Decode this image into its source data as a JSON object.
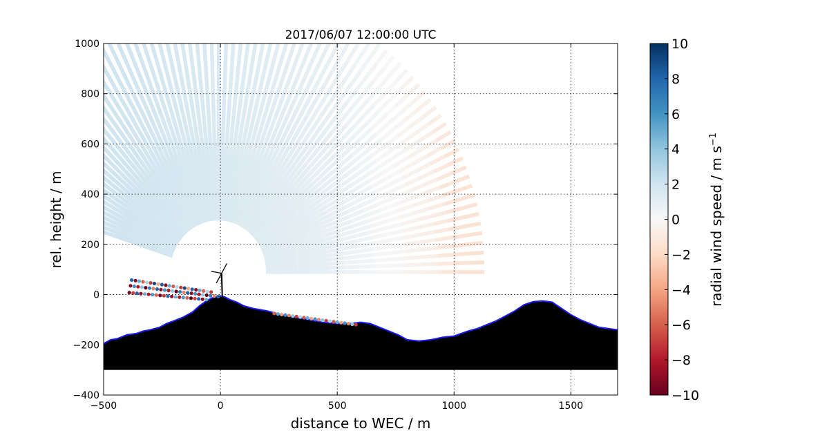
{
  "chart_data": {
    "type": "heatmap",
    "title": "2017/06/07 12:00:00 UTC",
    "xlabel": "distance to WEC / m",
    "ylabel": "rel. height / m",
    "xlim": [
      -500,
      1700
    ],
    "ylim": [
      -400,
      1000
    ],
    "xticks": [
      -500,
      0,
      500,
      1000,
      1500
    ],
    "yticks": [
      -400,
      -200,
      0,
      200,
      400,
      600,
      800,
      1000
    ],
    "xtick_labels": [
      "−500",
      "0",
      "500",
      "1000",
      "1500"
    ],
    "ytick_labels": [
      "−400",
      "−200",
      "0",
      "200",
      "400",
      "600",
      "800",
      "1000"
    ],
    "grid": true,
    "colorbar": {
      "label": "radial wind speed / m s",
      "label_superscript": "−1",
      "range": [
        -10,
        10
      ],
      "ticks": [
        10,
        8,
        6,
        4,
        2,
        0,
        -2,
        -4,
        -6,
        -8,
        -10
      ],
      "tick_labels": [
        "10",
        "8",
        "6",
        "4",
        "2",
        "0",
        "−2",
        "−4",
        "−6",
        "−8",
        "−10"
      ],
      "colormap": "RdBu",
      "colors": [
        "#67001f",
        "#b2182b",
        "#d6604d",
        "#f4a582",
        "#fddbc7",
        "#f7f7f7",
        "#d1e5f0",
        "#92c5de",
        "#4393c3",
        "#2166ac",
        "#053061"
      ]
    },
    "scan": {
      "origin": [
        -10,
        90
      ],
      "beam_length_m": 1140,
      "azimuth_start_deg": 0,
      "azimuth_end_deg": 162,
      "beam_count": 84,
      "velocity_west_to_east": [
        {
          "x": -400,
          "v": 2.0
        },
        {
          "x": 0,
          "v": 1.5
        },
        {
          "x": 500,
          "v": 0.8
        },
        {
          "x": 900,
          "v": -0.6
        },
        {
          "x": 1000,
          "v": -1.4
        },
        {
          "x": 1700,
          "v": -1.8
        }
      ]
    },
    "terrain": {
      "x": [
        -500,
        -470,
        -440,
        -400,
        -360,
        -330,
        -300,
        -260,
        -230,
        -200,
        -160,
        -120,
        -90,
        -60,
        -40,
        -20,
        0,
        20,
        40,
        70,
        100,
        140,
        170,
        200,
        260,
        320,
        380,
        440,
        500,
        560,
        600,
        640,
        680,
        720,
        760,
        800,
        850,
        900,
        950,
        1000,
        1060,
        1100,
        1140,
        1180,
        1220,
        1260,
        1300,
        1340,
        1380,
        1420,
        1460,
        1500,
        1540,
        1580,
        1620,
        1660,
        1700
      ],
      "y": [
        -195,
        -180,
        -175,
        -160,
        -155,
        -145,
        -140,
        -130,
        -115,
        -105,
        -90,
        -70,
        -45,
        -25,
        -15,
        -8,
        -5,
        -10,
        -20,
        -30,
        -45,
        -55,
        -60,
        -65,
        -80,
        -90,
        -100,
        -110,
        -115,
        -115,
        -110,
        -115,
        -130,
        -145,
        -160,
        -180,
        -185,
        -180,
        -170,
        -165,
        -145,
        -135,
        -120,
        -105,
        -85,
        -65,
        -40,
        -28,
        -25,
        -30,
        -55,
        -80,
        -100,
        -115,
        -130,
        -135,
        -140
      ],
      "base": -300
    },
    "near_ground_beams": [
      {
        "x0": -380,
        "y0": 58,
        "x1": -40,
        "y1": 10,
        "pattern": [
          8,
          -9,
          5,
          -6,
          3,
          -7,
          9,
          -4
        ]
      },
      {
        "x0": -385,
        "y0": 35,
        "x1": -10,
        "y1": -8,
        "pattern": [
          -9,
          6,
          -8,
          4,
          -10,
          7,
          -5,
          8
        ]
      },
      {
        "x0": -390,
        "y0": 8,
        "x1": -60,
        "y1": -20,
        "pattern": [
          -10,
          -7,
          8,
          -9,
          5,
          -8,
          6,
          -6
        ]
      },
      {
        "x0": 230,
        "y0": -75,
        "x1": 580,
        "y1": -120,
        "pattern": [
          -6,
          5,
          -4,
          6,
          -5,
          4,
          -7,
          3
        ]
      }
    ],
    "turbine": {
      "x": 5,
      "hub_height": 85,
      "rotor_radius": 45
    }
  }
}
